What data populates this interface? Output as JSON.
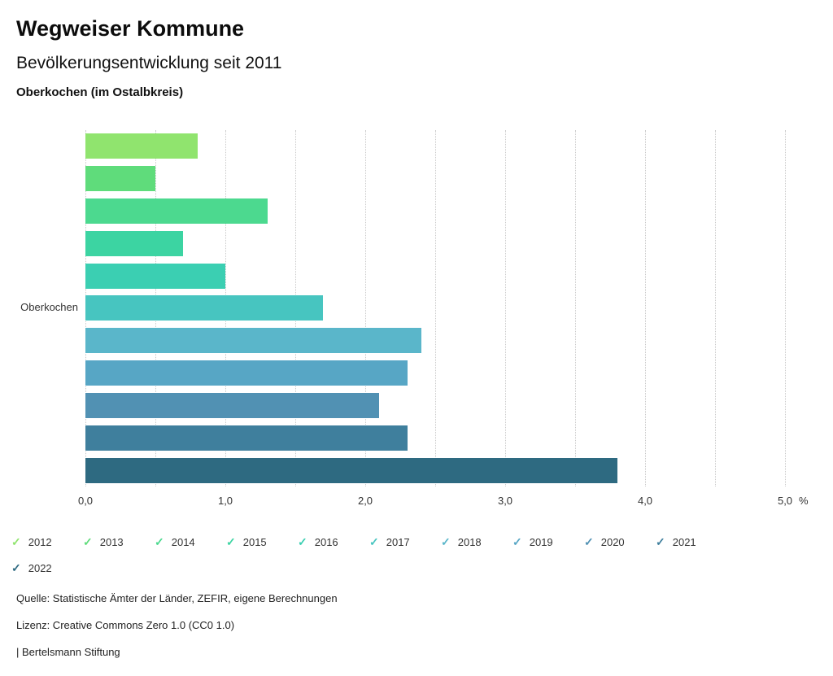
{
  "header": {
    "title": "Wegweiser Kommune"
  },
  "chart_data": {
    "type": "bar",
    "orientation": "horizontal",
    "title": "Bevölkerungsentwicklung seit 2011",
    "subtitle": "Oberkochen (im Ostalbkreis)",
    "category_label": "Oberkochen",
    "xlim": [
      0,
      5
    ],
    "x_ticks": [
      "0,0",
      "1,0",
      "2,0",
      "3,0",
      "4,0",
      "5,0"
    ],
    "x_unit": "%",
    "grid": "dotted-vertical",
    "legend_position": "bottom",
    "legend_marker": "check",
    "series": [
      {
        "name": "2012",
        "value": 0.8,
        "color": "#90e46e"
      },
      {
        "name": "2013",
        "value": 0.5,
        "color": "#5fdc7b"
      },
      {
        "name": "2014",
        "value": 1.3,
        "color": "#4cd98f"
      },
      {
        "name": "2015",
        "value": 0.7,
        "color": "#3cd4a2"
      },
      {
        "name": "2016",
        "value": 1.0,
        "color": "#3bcfb2"
      },
      {
        "name": "2017",
        "value": 1.7,
        "color": "#47c5c0"
      },
      {
        "name": "2018",
        "value": 2.4,
        "color": "#5ab6ca"
      },
      {
        "name": "2019",
        "value": 2.3,
        "color": "#57a6c5"
      },
      {
        "name": "2020",
        "value": 2.1,
        "color": "#5191b3"
      },
      {
        "name": "2021",
        "value": 2.3,
        "color": "#3f7f9d"
      },
      {
        "name": "2022",
        "value": 3.8,
        "color": "#2e6a81"
      }
    ]
  },
  "footer": {
    "source": "Quelle: Statistische Ämter der Länder, ZEFIR, eigene Berechnungen",
    "license": "Lizenz: Creative Commons Zero 1.0 (CC0 1.0)",
    "attribution": "| Bertelsmann Stiftung"
  }
}
